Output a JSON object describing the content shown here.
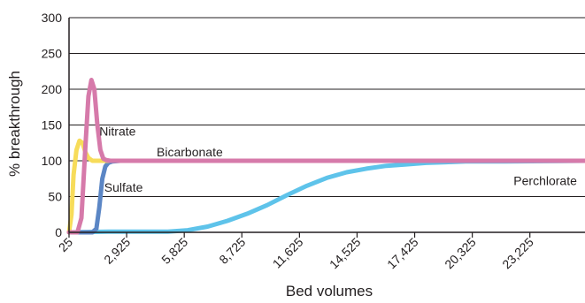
{
  "chart_data": {
    "type": "line",
    "xlabel": "Bed volumes",
    "ylabel": "% breakthrough",
    "xlim": [
      25,
      26000
    ],
    "ylim": [
      0,
      300
    ],
    "x_ticks": [
      "25",
      "2,925",
      "5,825",
      "8,725",
      "11,625",
      "14,525",
      "17,425",
      "20,325",
      "23,225"
    ],
    "y_ticks": [
      "0",
      "50",
      "100",
      "150",
      "200",
      "250",
      "300"
    ],
    "grid": "horizontal",
    "series": [
      {
        "name": "Nitrate",
        "color": "#d67aaa",
        "x": [
          25,
          450,
          650,
          850,
          1000,
          1150,
          1300,
          1450,
          1600,
          1750,
          1900,
          2100,
          2400,
          26000
        ],
        "y": [
          0,
          0,
          20,
          120,
          190,
          213,
          200,
          150,
          115,
          103,
          101,
          100,
          100,
          100
        ]
      },
      {
        "name": "Bicarbonate",
        "color": "#f7dc5a",
        "x": [
          25,
          150,
          250,
          400,
          550,
          700,
          850,
          1000,
          1200,
          1500,
          2000,
          26000
        ],
        "y": [
          0,
          25,
          80,
          115,
          128,
          125,
          112,
          104,
          100,
          100,
          100,
          100
        ]
      },
      {
        "name": "Sulfate",
        "color": "#5b86c5",
        "x": [
          25,
          1200,
          1400,
          1550,
          1700,
          1850,
          2000,
          2200,
          2600,
          26000
        ],
        "y": [
          0,
          0,
          5,
          35,
          75,
          92,
          97,
          99,
          100,
          100
        ]
      },
      {
        "name": "Perchlorate",
        "color": "#5ec3ea",
        "x": [
          25,
          2000,
          5000,
          6000,
          7000,
          8000,
          9000,
          10000,
          11000,
          12000,
          13000,
          14000,
          15000,
          16000,
          17000,
          18000,
          19000,
          20000,
          22000,
          24000,
          26000
        ],
        "y": [
          0,
          1,
          1,
          3,
          8,
          16,
          26,
          38,
          52,
          65,
          76,
          84,
          89,
          93,
          95,
          97,
          98,
          99,
          99,
          99.5,
          100
        ]
      }
    ]
  }
}
